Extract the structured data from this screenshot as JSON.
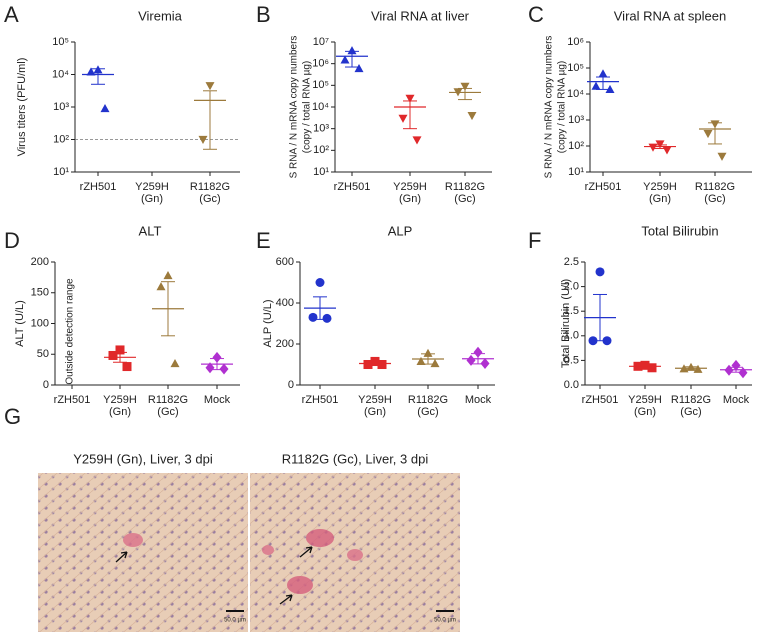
{
  "chart_data": [
    {
      "type": "dot",
      "panel": "A",
      "title": "Viremia",
      "ylabel": [
        "Virus titers (PFU/ml)"
      ],
      "log": true,
      "ylim": [
        10,
        100000
      ],
      "yticks": [
        {
          "value": 10,
          "label": "10¹"
        },
        {
          "value": 100,
          "label": "10²"
        },
        {
          "value": 1000,
          "label": "10³"
        },
        {
          "value": 10000,
          "label": "10⁴"
        },
        {
          "value": 100000,
          "label": "10⁵"
        }
      ],
      "hline": 100,
      "categories": [
        [
          "rZH501"
        ],
        [
          "Y259H",
          "(Gn)"
        ],
        [
          "R1182G",
          "(Gc)"
        ]
      ],
      "groups": [
        {
          "color": "#2233cc",
          "marker": "triangle-up",
          "values": [
            14000,
            12000,
            900
          ],
          "mean": 10000,
          "sem": 5000
        },
        {
          "values": []
        },
        {
          "color": "#9c7a3c",
          "marker": "triangle-down",
          "values": [
            4500,
            100
          ],
          "mean": 1600,
          "sem": 1550
        }
      ]
    },
    {
      "type": "dot",
      "panel": "B",
      "title": "Viral RNA at liver",
      "ylabel": [
        "S RNA / N mRNA copy numbers",
        "(copy / total RNA µg)"
      ],
      "log": true,
      "ylim": [
        10,
        10000000
      ],
      "yticks": [
        {
          "value": 10,
          "label": "10¹"
        },
        {
          "value": 100,
          "label": "10²"
        },
        {
          "value": 1000,
          "label": "10³"
        },
        {
          "value": 10000,
          "label": "10⁴"
        },
        {
          "value": 100000,
          "label": "10⁵"
        },
        {
          "value": 1000000,
          "label": "10⁶"
        },
        {
          "value": 10000000,
          "label": "10⁷"
        }
      ],
      "categories": [
        [
          "rZH501"
        ],
        [
          "Y259H",
          "(Gn)"
        ],
        [
          "R1182G",
          "(Gc)"
        ]
      ],
      "groups": [
        {
          "color": "#2233cc",
          "marker": "triangle-up",
          "values": [
            4000000,
            1500000,
            600000
          ],
          "mean": 2200000,
          "sem": 1500000
        },
        {
          "color": "#e0282a",
          "marker": "triangle-down",
          "values": [
            25000,
            3000,
            300
          ],
          "mean": 10000,
          "sem": 9000
        },
        {
          "color": "#9c7a3c",
          "marker": "triangle-down",
          "values": [
            90000,
            50000,
            4000
          ],
          "mean": 47000,
          "sem": 25000
        }
      ]
    },
    {
      "type": "dot",
      "panel": "C",
      "title": "Viral RNA at spleen",
      "ylabel": [
        "S RNA / N mRNA copy numbers",
        "(copy / total RNA µg)"
      ],
      "log": true,
      "ylim": [
        10,
        1000000
      ],
      "yticks": [
        {
          "value": 10,
          "label": "10¹"
        },
        {
          "value": 100,
          "label": "10²"
        },
        {
          "value": 1000,
          "label": "10³"
        },
        {
          "value": 10000,
          "label": "10⁴"
        },
        {
          "value": 100000,
          "label": "10⁵"
        },
        {
          "value": 1000000,
          "label": "10⁶"
        }
      ],
      "categories": [
        [
          "rZH501"
        ],
        [
          "Y259H",
          "(Gn)"
        ],
        [
          "R1182G",
          "(Gc)"
        ]
      ],
      "groups": [
        {
          "color": "#2233cc",
          "marker": "triangle-up",
          "values": [
            60000,
            20000,
            15000
          ],
          "mean": 30000,
          "sem": 15000
        },
        {
          "color": "#e0282a",
          "marker": "triangle-down",
          "values": [
            120,
            90,
            70
          ],
          "mean": 95,
          "sem": 15
        },
        {
          "color": "#9c7a3c",
          "marker": "triangle-down",
          "values": [
            700,
            300,
            40
          ],
          "mean": 450,
          "sem": 330
        }
      ]
    },
    {
      "type": "dot",
      "panel": "D",
      "title": "ALT",
      "ylabel": [
        "ALT (U/L)"
      ],
      "log": false,
      "ylim": [
        0,
        200
      ],
      "yticks": [
        0,
        50,
        100,
        150,
        200
      ],
      "annotation": "Outside detection range",
      "categories": [
        [
          "rZH501"
        ],
        [
          "Y259H",
          "(Gn)"
        ],
        [
          "R1182G",
          "(Gc)"
        ],
        [
          "Mock"
        ]
      ],
      "groups": [
        {
          "values": []
        },
        {
          "color": "#e0282a",
          "marker": "square",
          "values": [
            57,
            48,
            30
          ],
          "mean": 45,
          "sem": 8
        },
        {
          "color": "#9c7a3c",
          "marker": "triangle-up",
          "values": [
            178,
            160,
            35
          ],
          "mean": 124,
          "sem": 44
        },
        {
          "color": "#b030d0",
          "marker": "diamond",
          "values": [
            45,
            28,
            26
          ],
          "mean": 34,
          "sem": 9
        }
      ]
    },
    {
      "type": "dot",
      "panel": "E",
      "title": "ALP",
      "ylabel": [
        "ALP (U/L)"
      ],
      "log": false,
      "ylim": [
        0,
        600
      ],
      "yticks": [
        0,
        200,
        400,
        600
      ],
      "categories": [
        [
          "rZH501"
        ],
        [
          "Y259H",
          "(Gn)"
        ],
        [
          "R1182G",
          "(Gc)"
        ],
        [
          "Mock"
        ]
      ],
      "groups": [
        {
          "color": "#2233cc",
          "marker": "circle",
          "values": [
            500,
            330,
            325
          ],
          "mean": 375,
          "sem": 55
        },
        {
          "color": "#e0282a",
          "marker": "square",
          "values": [
            115,
            100,
            100
          ],
          "mean": 105,
          "sem": 10
        },
        {
          "color": "#9c7a3c",
          "marker": "triangle-up",
          "values": [
            155,
            115,
            105
          ],
          "mean": 127,
          "sem": 25
        },
        {
          "color": "#b030d0",
          "marker": "diamond",
          "values": [
            160,
            120,
            105
          ],
          "mean": 128,
          "sem": 25
        }
      ]
    },
    {
      "type": "dot",
      "panel": "F",
      "title": "Total Bilirubin",
      "ylabel": [
        "Total Bilirubin (U/l)"
      ],
      "log": false,
      "ylim": [
        0,
        2.5
      ],
      "yticks": [
        {
          "value": 0,
          "label": "0.0"
        },
        0.5,
        {
          "value": 1,
          "label": "1.0"
        },
        1.5,
        {
          "value": 2,
          "label": "2.0"
        },
        2.5
      ],
      "categories": [
        [
          "rZH501"
        ],
        [
          "Y259H",
          "(Gn)"
        ],
        [
          "R1182G",
          "(Gc)"
        ],
        [
          "Mock"
        ]
      ],
      "groups": [
        {
          "color": "#2233cc",
          "marker": "circle",
          "values": [
            2.3,
            0.9,
            0.9
          ],
          "mean": 1.37,
          "sem": 0.47
        },
        {
          "color": "#e0282a",
          "marker": "square",
          "values": [
            0.4,
            0.38,
            0.35
          ],
          "mean": 0.38,
          "sem": 0.02
        },
        {
          "color": "#9c7a3c",
          "marker": "triangle-up",
          "values": [
            0.36,
            0.33,
            0.32
          ],
          "mean": 0.34,
          "sem": 0.03
        },
        {
          "color": "#b030d0",
          "marker": "diamond",
          "values": [
            0.4,
            0.3,
            0.25
          ],
          "mean": 0.31,
          "sem": 0.05
        }
      ]
    }
  ],
  "histology": {
    "panel": "G",
    "images": [
      {
        "title": "Y259H (Gn), Liver, 3 dpi",
        "scale_bar": "50.0 µm"
      },
      {
        "title": "R1182G (Gc), Liver, 3 dpi",
        "scale_bar": "50.0 µm"
      }
    ]
  }
}
